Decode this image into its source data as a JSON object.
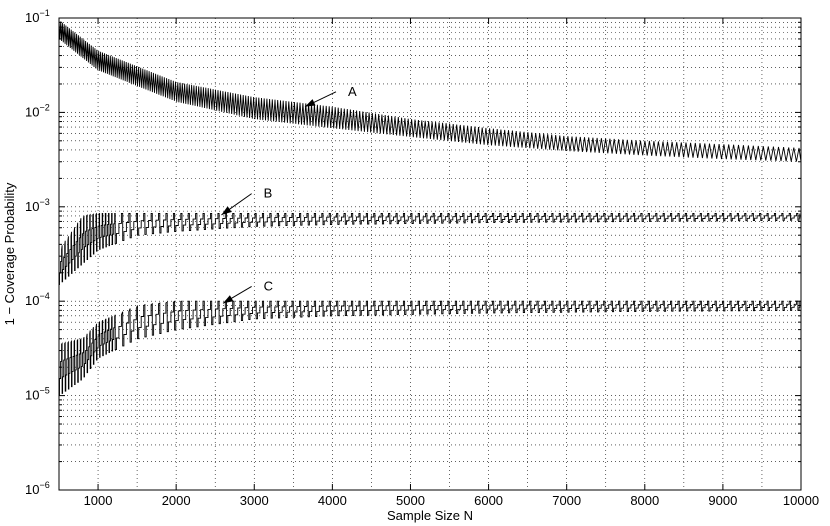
{
  "chart_data": {
    "type": "line",
    "title": "",
    "xlabel": "Sample Size N",
    "ylabel": "1 − Coverage Probability",
    "xlim": [
      500,
      10000
    ],
    "ylim": [
      1e-06,
      0.1
    ],
    "yscale": "log",
    "grid": true,
    "x_ticks": [
      1000,
      2000,
      3000,
      4000,
      5000,
      6000,
      7000,
      8000,
      9000,
      10000
    ],
    "y_tick_labels": [
      {
        "value": 1e-06,
        "base": "10",
        "exp": "−6"
      },
      {
        "value": 1e-05,
        "base": "10",
        "exp": "−5"
      },
      {
        "value": 0.0001,
        "base": "10",
        "exp": "−4"
      },
      {
        "value": 0.001,
        "base": "10",
        "exp": "−3"
      },
      {
        "value": 0.01,
        "base": "10",
        "exp": "−2"
      },
      {
        "value": 0.1,
        "base": "10",
        "exp": "−1"
      }
    ],
    "series": [
      {
        "label": "A",
        "pattern": "sawtooth",
        "envelope_x": [
          500,
          1000,
          2000,
          3000,
          4000,
          5000,
          6000,
          7000,
          8000,
          9000,
          10000
        ],
        "upper": [
          0.095,
          0.045,
          0.021,
          0.0145,
          0.0115,
          0.0085,
          0.0068,
          0.0056,
          0.005,
          0.0046,
          0.0042
        ],
        "lower": [
          0.06,
          0.028,
          0.013,
          0.0085,
          0.0068,
          0.0055,
          0.0045,
          0.0039,
          0.0035,
          0.0032,
          0.003
        ]
      },
      {
        "label": "B",
        "pattern": "stepped",
        "envelope_x": [
          500,
          800,
          1000,
          1500,
          2000,
          3000,
          4000,
          6000,
          8000,
          10000
        ],
        "upper": [
          0.00035,
          0.0008,
          0.00085,
          0.00085,
          0.00085,
          0.00085,
          0.00085,
          0.00085,
          0.00085,
          0.00085
        ],
        "lower": [
          0.00015,
          0.00025,
          0.00035,
          0.0005,
          0.00055,
          0.00062,
          0.00065,
          0.00068,
          0.0007,
          0.00072
        ]
      },
      {
        "label": "C",
        "pattern": "stepped",
        "envelope_x": [
          500,
          800,
          1000,
          1500,
          2000,
          3000,
          4000,
          6000,
          8000,
          10000
        ],
        "upper": [
          3.5e-05,
          4e-05,
          6e-05,
          9e-05,
          0.0001,
          0.0001,
          0.0001,
          0.0001,
          0.0001,
          0.0001
        ],
        "lower": [
          1e-05,
          1.5e-05,
          2.5e-05,
          4e-05,
          5e-05,
          6.5e-05,
          7e-05,
          7.5e-05,
          7.8e-05,
          8e-05
        ]
      }
    ],
    "annotations": [
      {
        "text": "A",
        "arrow_to": [
          3650,
          0.0115
        ],
        "label_at": [
          4200,
          0.015
        ]
      },
      {
        "text": "B",
        "arrow_to": [
          2580,
          0.00082
        ],
        "label_at": [
          3120,
          0.00125
        ]
      },
      {
        "text": "C",
        "arrow_to": [
          2600,
          9.5e-05
        ],
        "label_at": [
          3120,
          0.00013
        ]
      }
    ]
  }
}
